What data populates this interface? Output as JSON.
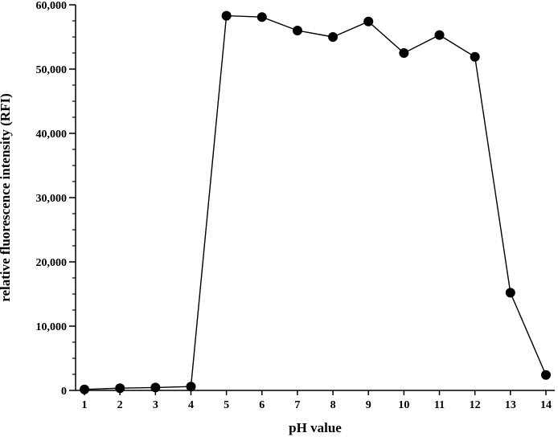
{
  "chart_data": {
    "type": "line",
    "title": "",
    "xlabel": "pH value",
    "ylabel": "relative fluorescence intensity (RFI)",
    "xlim": [
      0.75,
      14.25
    ],
    "ylim": [
      0,
      60000
    ],
    "x_ticks": [
      "1",
      "2",
      "3",
      "4",
      "5",
      "6",
      "7",
      "8",
      "9",
      "10",
      "11",
      "12",
      "13",
      "14"
    ],
    "y_ticks": [
      "0",
      "10,000",
      "20,000",
      "30,000",
      "40,000",
      "50,000",
      "60,000"
    ],
    "y_tick_values": [
      0,
      10000,
      20000,
      30000,
      40000,
      50000,
      60000
    ],
    "grid": false,
    "legend": "none",
    "series": [
      {
        "x": [
          1,
          2,
          3,
          4,
          5,
          6,
          7,
          8,
          9,
          10,
          11,
          12,
          13,
          14
        ],
        "y": [
          150,
          350,
          450,
          600,
          58300,
          58100,
          56000,
          55000,
          57400,
          52500,
          55300,
          51900,
          15200,
          2400
        ],
        "color": "#000000",
        "marker": "circle-filled"
      }
    ]
  }
}
